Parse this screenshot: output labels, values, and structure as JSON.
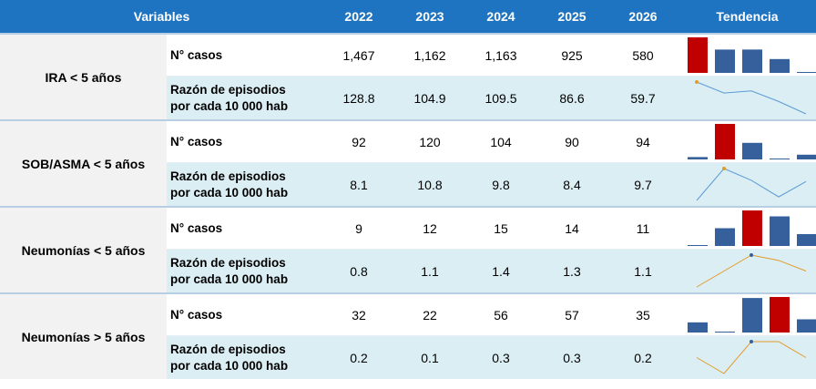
{
  "header": {
    "variables": "Variables",
    "years": [
      "2022",
      "2023",
      "2024",
      "2025",
      "2026"
    ],
    "trend": "Tendencia"
  },
  "groups": [
    {
      "label": "IRA < 5 años",
      "rows": [
        {
          "label": "N° casos",
          "chart": "bar",
          "color": "#36609c",
          "highlight_color": "#c00000",
          "values": [
            1467,
            1162,
            1163,
            925,
            580
          ],
          "value_labels": [
            "1,467",
            "1,162",
            "1,163",
            "925",
            "580"
          ]
        },
        {
          "label": "Razón de episodios por cada 10 000 hab",
          "chart": "line",
          "color": "#5b9bd5",
          "highlight_color": "#e39b2a",
          "values": [
            128.8,
            104.9,
            109.5,
            86.6,
            59.7
          ]
        }
      ]
    },
    {
      "label": "SOB/ASMA < 5 años",
      "rows": [
        {
          "label": "N° casos",
          "chart": "bar",
          "color": "#36609c",
          "highlight_color": "#c00000",
          "values": [
            92,
            120,
            104,
            90,
            94
          ]
        },
        {
          "label": "Razón de episodios por cada 10 000 hab",
          "chart": "line",
          "color": "#5b9bd5",
          "highlight_color": "#e39b2a",
          "values": [
            8.1,
            10.8,
            9.8,
            8.4,
            9.7
          ]
        }
      ]
    },
    {
      "label": "Neumonías < 5 años",
      "rows": [
        {
          "label": "N° casos",
          "chart": "bar",
          "color": "#36609c",
          "highlight_color": "#c00000",
          "values": [
            9,
            12,
            15,
            14,
            11
          ]
        },
        {
          "label": "Razón de episodios por cada 10 000 hab",
          "chart": "line",
          "color": "#e39b2a",
          "highlight_color": "#36609c",
          "values": [
            0.8,
            1.1,
            1.4,
            1.3,
            1.1
          ]
        }
      ]
    },
    {
      "label": "Neumonías > 5 años",
      "rows": [
        {
          "label": "N° casos",
          "chart": "bar",
          "color": "#36609c",
          "highlight_color": "#c00000",
          "values": [
            32,
            22,
            56,
            57,
            35
          ]
        },
        {
          "label": "Razón de episodios por cada 10 000 hab",
          "chart": "line",
          "color": "#e39b2a",
          "highlight_color": "#36609c",
          "values": [
            0.2,
            0.1,
            0.3,
            0.3,
            0.2
          ]
        }
      ]
    }
  ]
}
